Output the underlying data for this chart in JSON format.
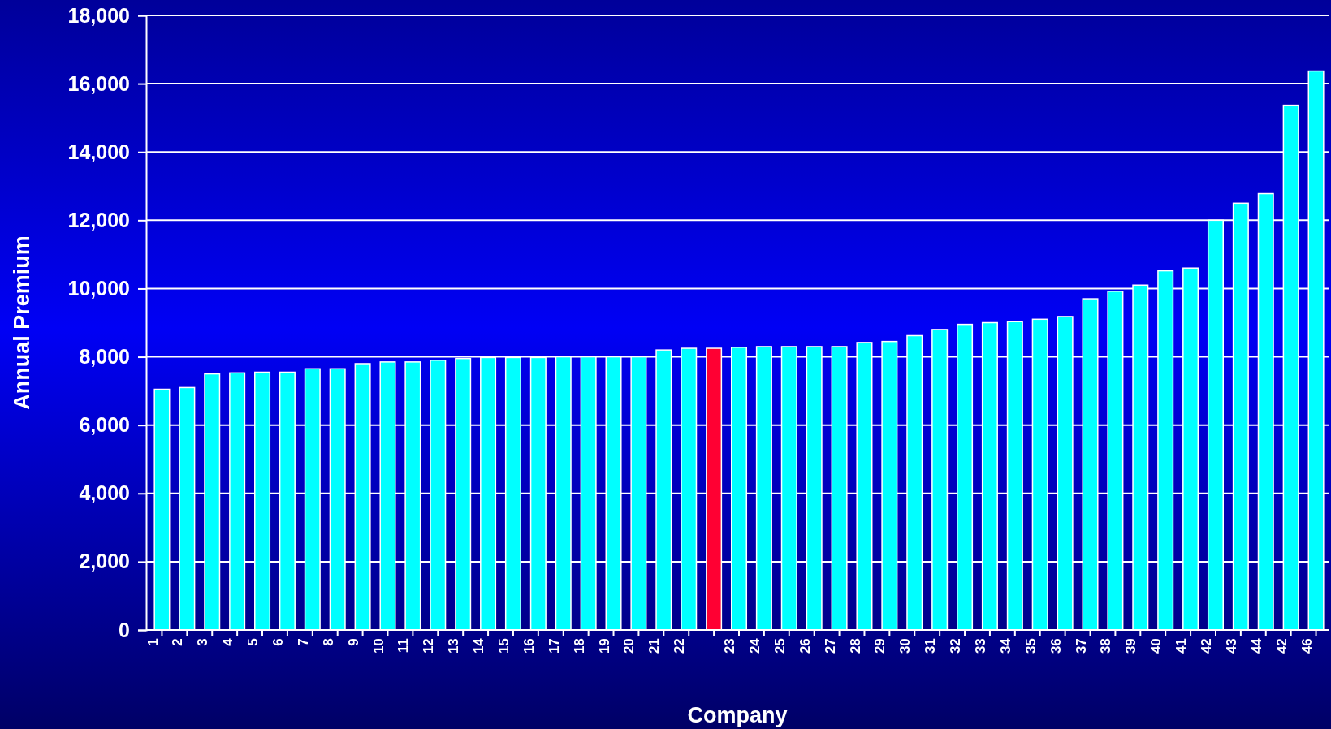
{
  "chart_data": {
    "type": "bar",
    "xlabel": "Company",
    "ylabel": "Annual Premium",
    "categories": [
      "1",
      "2",
      "3",
      "4",
      "5",
      "6",
      "7",
      "8",
      "9",
      "10",
      "11",
      "12",
      "13",
      "14",
      "15",
      "16",
      "17",
      "18",
      "19",
      "20",
      "21",
      "22",
      null,
      "23",
      "24",
      "25",
      "26",
      "27",
      "28",
      "29",
      "30",
      "31",
      "32",
      "33",
      "34",
      "35",
      "36",
      "37",
      "38",
      "39",
      "40",
      "41",
      "42",
      "43",
      "44",
      "42",
      "46"
    ],
    "values": [
      7050,
      7100,
      7500,
      7530,
      7550,
      7550,
      7650,
      7650,
      7800,
      7850,
      7850,
      7900,
      7950,
      7980,
      7980,
      7980,
      8000,
      8000,
      8000,
      8000,
      8200,
      8250,
      8250,
      8280,
      8300,
      8300,
      8300,
      8300,
      8420,
      8450,
      8620,
      8800,
      8950,
      9000,
      9030,
      9100,
      9180,
      9700,
      9920,
      10100,
      10520,
      10600,
      12000,
      12500,
      12780,
      15370,
      16370
    ],
    "colors": [
      "#00ffff",
      "#00ffff",
      "#00ffff",
      "#00ffff",
      "#00ffff",
      "#00ffff",
      "#00ffff",
      "#00ffff",
      "#00ffff",
      "#00ffff",
      "#00ffff",
      "#00ffff",
      "#00ffff",
      "#00ffff",
      "#00ffff",
      "#00ffff",
      "#00ffff",
      "#00ffff",
      "#00ffff",
      "#00ffff",
      "#00ffff",
      "#00ffff",
      "#ff0033",
      "#00ffff",
      "#00ffff",
      "#00ffff",
      "#00ffff",
      "#00ffff",
      "#00ffff",
      "#00ffff",
      "#00ffff",
      "#00ffff",
      "#00ffff",
      "#00ffff",
      "#00ffff",
      "#00ffff",
      "#00ffff",
      "#00ffff",
      "#00ffff",
      "#00ffff",
      "#00ffff",
      "#00ffff",
      "#00ffff",
      "#00ffff",
      "#00ffff",
      "#00ffff",
      "#00ffff"
    ],
    "ylim": [
      0,
      18000
    ],
    "yticks": [
      {
        "value": 0,
        "label": "0"
      },
      {
        "value": 2000,
        "label": "2,000"
      },
      {
        "value": 4000,
        "label": "4,000"
      },
      {
        "value": 6000,
        "label": "6,000"
      },
      {
        "value": 8000,
        "label": "8,000"
      },
      {
        "value": 10000,
        "label": "10,000"
      },
      {
        "value": 12000,
        "label": "12,000"
      },
      {
        "value": 14000,
        "label": "14,000"
      },
      {
        "value": 16000,
        "label": "16,000"
      },
      {
        "value": 18000,
        "label": "18,000"
      }
    ],
    "grid": "y"
  }
}
